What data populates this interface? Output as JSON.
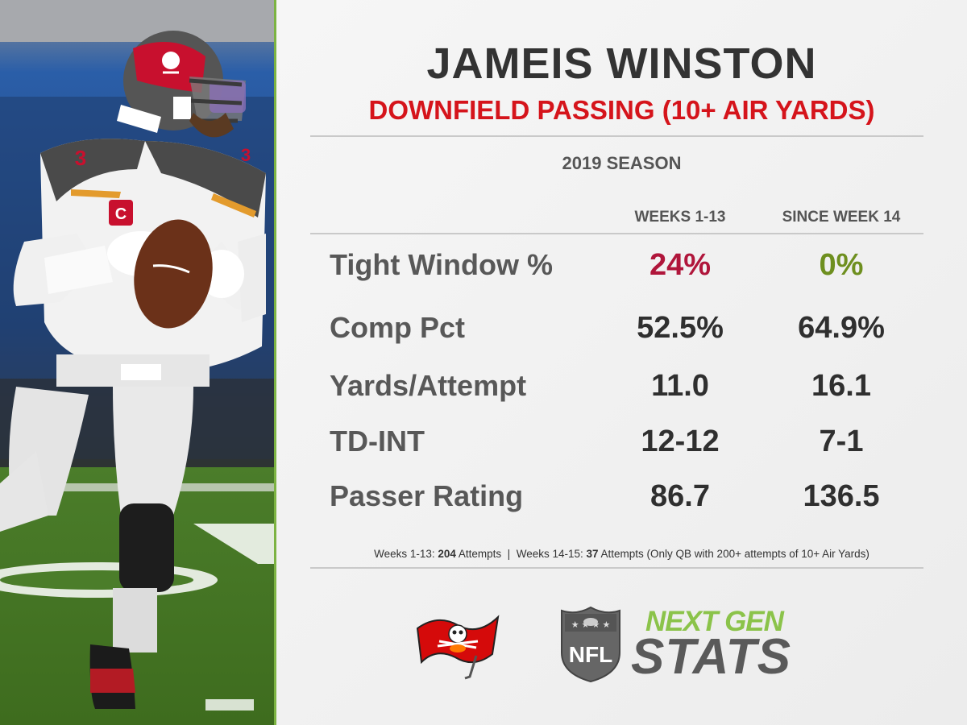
{
  "header": {
    "player_name": "JAMEIS WINSTON",
    "subtitle": "DOWNFIELD PASSING (10+ AIR YARDS)",
    "season": "2019 SEASON"
  },
  "columns": {
    "a": "WEEKS 1-13",
    "b": "SINCE WEEK 14"
  },
  "rows": [
    {
      "label": "Tight Window %",
      "a": "24%",
      "b": "0%"
    },
    {
      "label": "Comp Pct",
      "a": "52.5%",
      "b": "64.9%"
    },
    {
      "label": "Yards/Attempt",
      "a": "11.0",
      "b": "16.1"
    },
    {
      "label": "TD-INT",
      "a": "12-12",
      "b": "7-1"
    },
    {
      "label": "Passer Rating",
      "a": "86.7",
      "b": "136.5"
    }
  ],
  "footnote": {
    "p1": "Weeks 1-13: ",
    "n1": "204",
    "p2": " Attempts  |  Weeks 14-15: ",
    "n2": "37",
    "p3": " Attempts (Only QB with 200+ attempts of 10+ Air Yards)"
  },
  "logos": {
    "nfl": "NFL",
    "ngs_top": "NEXT GEN",
    "ngs_bottom": "STATS"
  },
  "photo": {
    "jersey_patch": "C",
    "sleeve_numbers": "3"
  },
  "colors": {
    "accent_red": "#d5141b",
    "bad": "#b0163b",
    "good": "#6e8f1f",
    "ngs_green": "#8bc34a",
    "border_green": "#7cb342"
  }
}
